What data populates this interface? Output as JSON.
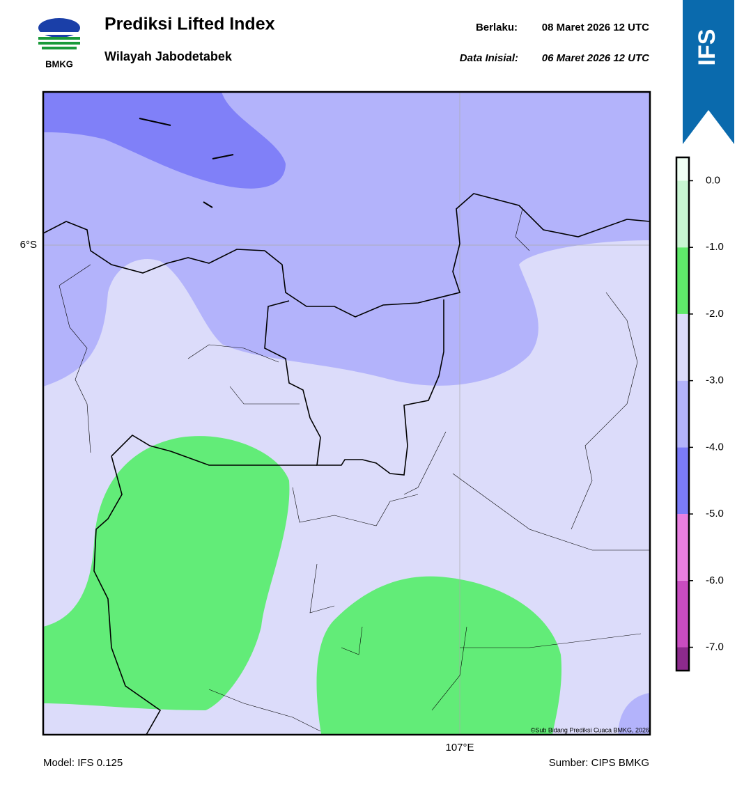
{
  "header": {
    "title": "Prediksi Lifted Index",
    "subtitle": "Wilayah Jabodetabek",
    "valid_label": "Berlaku:",
    "valid_time": "08 Maret 2026 12 UTC",
    "init_label": "Data Inisial:",
    "init_time": "06 Maret 2026 12 UTC"
  },
  "logo": {
    "text": "BMKG"
  },
  "badge": {
    "text": "IFS"
  },
  "map": {
    "lat_label": "6°S",
    "lon_label": "107°E",
    "credit": "©Sub Bidang Prediksi Cuaca BMKG, 2026"
  },
  "colorbar": {
    "levels": [
      -7.35,
      -7,
      -6,
      -5,
      -4,
      -3,
      -2,
      -1,
      0,
      0.35
    ],
    "colors": [
      "#8c2a8c",
      "#c84cc0",
      "#e87fe0",
      "#7b7bf8",
      "#b3b3fb",
      "#dcdcfa",
      "#5fe86a",
      "#c8f5d2",
      "#f0fff4"
    ],
    "ticks": [
      {
        "value": 0,
        "label": "0.0"
      },
      {
        "value": -1,
        "label": "-1.0"
      },
      {
        "value": -2,
        "label": "-2.0"
      },
      {
        "value": -3,
        "label": "-3.0"
      },
      {
        "value": -4,
        "label": "-4.0"
      },
      {
        "value": -5,
        "label": "-5.0"
      },
      {
        "value": -6,
        "label": "-6.0"
      },
      {
        "value": -7,
        "label": "-7.0"
      }
    ]
  },
  "footer": {
    "model": "Model: IFS 0.125",
    "source": "Sumber: CIPS BMKG"
  }
}
